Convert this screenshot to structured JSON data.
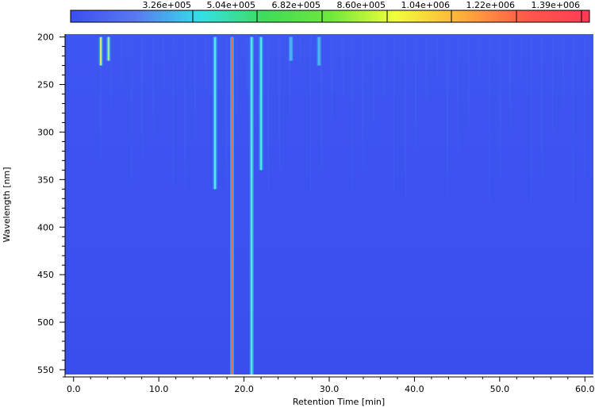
{
  "chart_data": {
    "type": "heatmap",
    "title": "",
    "xlabel": "Retention Time [min]",
    "ylabel": "Wavelength [nm]",
    "xlim": [
      -1,
      61
    ],
    "ylim": [
      555,
      197
    ],
    "x_ticks": [
      0,
      10,
      20,
      30,
      40,
      50,
      60
    ],
    "x_tick_labels": [
      "0.0",
      "10.0",
      "20.0",
      "30.0",
      "40.0",
      "50.0",
      "60.0"
    ],
    "y_ticks": [
      200,
      250,
      300,
      350,
      400,
      450,
      500,
      550
    ],
    "y_tick_labels": [
      "200",
      "250",
      "300",
      "350",
      "400",
      "450",
      "500",
      "550"
    ],
    "grid": false,
    "background_value_color": "#3a4ff0",
    "colorbar": {
      "placement": "top",
      "values": [
        326000,
        504000,
        682000,
        860000,
        1040000,
        1220000,
        1390000
      ],
      "labels": [
        "3.26e+005",
        "5.04e+005",
        "6.82e+005",
        "8.60e+005",
        "1.04e+006",
        "1.22e+006",
        "1.39e+006"
      ],
      "colors": [
        "#3a4ff0",
        "#5a78f2",
        "#33e0e8",
        "#3fdc5a",
        "#6de83a",
        "#f2ff3a",
        "#ffb03a",
        "#ff5a4a",
        "#ff3a55"
      ]
    },
    "peaks": [
      {
        "rt": 3.2,
        "wl_range": [
          200,
          230
        ],
        "color": "#e8f04a"
      },
      {
        "rt": 4.1,
        "wl_range": [
          200,
          225
        ],
        "color": "#9ff0a0"
      },
      {
        "rt": 16.6,
        "wl_range": [
          200,
          360
        ],
        "color": "#4ef0e0"
      },
      {
        "rt": 18.6,
        "wl_range": [
          200,
          555
        ],
        "color": "#ff6a4a"
      },
      {
        "rt": 20.9,
        "wl_range": [
          200,
          555
        ],
        "color": "#58f0d8"
      },
      {
        "rt": 22.0,
        "wl_range": [
          200,
          340
        ],
        "color": "#4ee8e8"
      },
      {
        "rt": 25.5,
        "wl_range": [
          200,
          225
        ],
        "color": "#5ab0f0"
      },
      {
        "rt": 28.8,
        "wl_range": [
          200,
          230
        ],
        "color": "#5ab0f0"
      }
    ]
  }
}
